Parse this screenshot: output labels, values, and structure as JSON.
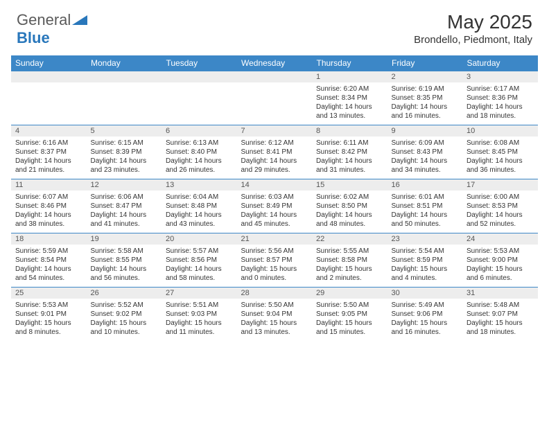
{
  "logo": {
    "text_general": "General",
    "text_blue": "Blue"
  },
  "title": "May 2025",
  "location": "Brondello, Piedmont, Italy",
  "colors": {
    "header_bg": "#3c87c7",
    "header_text": "#ffffff",
    "daynum_bg": "#ededed",
    "daynum_text": "#555555",
    "body_text": "#333333",
    "divider": "#3c87c7"
  },
  "day_names": [
    "Sunday",
    "Monday",
    "Tuesday",
    "Wednesday",
    "Thursday",
    "Friday",
    "Saturday"
  ],
  "weeks": [
    [
      {
        "empty": true
      },
      {
        "empty": true
      },
      {
        "empty": true
      },
      {
        "empty": true
      },
      {
        "day": "1",
        "sunrise": "Sunrise: 6:20 AM",
        "sunset": "Sunset: 8:34 PM",
        "daylight1": "Daylight: 14 hours",
        "daylight2": "and 13 minutes."
      },
      {
        "day": "2",
        "sunrise": "Sunrise: 6:19 AM",
        "sunset": "Sunset: 8:35 PM",
        "daylight1": "Daylight: 14 hours",
        "daylight2": "and 16 minutes."
      },
      {
        "day": "3",
        "sunrise": "Sunrise: 6:17 AM",
        "sunset": "Sunset: 8:36 PM",
        "daylight1": "Daylight: 14 hours",
        "daylight2": "and 18 minutes."
      }
    ],
    [
      {
        "day": "4",
        "sunrise": "Sunrise: 6:16 AM",
        "sunset": "Sunset: 8:37 PM",
        "daylight1": "Daylight: 14 hours",
        "daylight2": "and 21 minutes."
      },
      {
        "day": "5",
        "sunrise": "Sunrise: 6:15 AM",
        "sunset": "Sunset: 8:39 PM",
        "daylight1": "Daylight: 14 hours",
        "daylight2": "and 23 minutes."
      },
      {
        "day": "6",
        "sunrise": "Sunrise: 6:13 AM",
        "sunset": "Sunset: 8:40 PM",
        "daylight1": "Daylight: 14 hours",
        "daylight2": "and 26 minutes."
      },
      {
        "day": "7",
        "sunrise": "Sunrise: 6:12 AM",
        "sunset": "Sunset: 8:41 PM",
        "daylight1": "Daylight: 14 hours",
        "daylight2": "and 29 minutes."
      },
      {
        "day": "8",
        "sunrise": "Sunrise: 6:11 AM",
        "sunset": "Sunset: 8:42 PM",
        "daylight1": "Daylight: 14 hours",
        "daylight2": "and 31 minutes."
      },
      {
        "day": "9",
        "sunrise": "Sunrise: 6:09 AM",
        "sunset": "Sunset: 8:43 PM",
        "daylight1": "Daylight: 14 hours",
        "daylight2": "and 34 minutes."
      },
      {
        "day": "10",
        "sunrise": "Sunrise: 6:08 AM",
        "sunset": "Sunset: 8:45 PM",
        "daylight1": "Daylight: 14 hours",
        "daylight2": "and 36 minutes."
      }
    ],
    [
      {
        "day": "11",
        "sunrise": "Sunrise: 6:07 AM",
        "sunset": "Sunset: 8:46 PM",
        "daylight1": "Daylight: 14 hours",
        "daylight2": "and 38 minutes."
      },
      {
        "day": "12",
        "sunrise": "Sunrise: 6:06 AM",
        "sunset": "Sunset: 8:47 PM",
        "daylight1": "Daylight: 14 hours",
        "daylight2": "and 41 minutes."
      },
      {
        "day": "13",
        "sunrise": "Sunrise: 6:04 AM",
        "sunset": "Sunset: 8:48 PM",
        "daylight1": "Daylight: 14 hours",
        "daylight2": "and 43 minutes."
      },
      {
        "day": "14",
        "sunrise": "Sunrise: 6:03 AM",
        "sunset": "Sunset: 8:49 PM",
        "daylight1": "Daylight: 14 hours",
        "daylight2": "and 45 minutes."
      },
      {
        "day": "15",
        "sunrise": "Sunrise: 6:02 AM",
        "sunset": "Sunset: 8:50 PM",
        "daylight1": "Daylight: 14 hours",
        "daylight2": "and 48 minutes."
      },
      {
        "day": "16",
        "sunrise": "Sunrise: 6:01 AM",
        "sunset": "Sunset: 8:51 PM",
        "daylight1": "Daylight: 14 hours",
        "daylight2": "and 50 minutes."
      },
      {
        "day": "17",
        "sunrise": "Sunrise: 6:00 AM",
        "sunset": "Sunset: 8:53 PM",
        "daylight1": "Daylight: 14 hours",
        "daylight2": "and 52 minutes."
      }
    ],
    [
      {
        "day": "18",
        "sunrise": "Sunrise: 5:59 AM",
        "sunset": "Sunset: 8:54 PM",
        "daylight1": "Daylight: 14 hours",
        "daylight2": "and 54 minutes."
      },
      {
        "day": "19",
        "sunrise": "Sunrise: 5:58 AM",
        "sunset": "Sunset: 8:55 PM",
        "daylight1": "Daylight: 14 hours",
        "daylight2": "and 56 minutes."
      },
      {
        "day": "20",
        "sunrise": "Sunrise: 5:57 AM",
        "sunset": "Sunset: 8:56 PM",
        "daylight1": "Daylight: 14 hours",
        "daylight2": "and 58 minutes."
      },
      {
        "day": "21",
        "sunrise": "Sunrise: 5:56 AM",
        "sunset": "Sunset: 8:57 PM",
        "daylight1": "Daylight: 15 hours",
        "daylight2": "and 0 minutes."
      },
      {
        "day": "22",
        "sunrise": "Sunrise: 5:55 AM",
        "sunset": "Sunset: 8:58 PM",
        "daylight1": "Daylight: 15 hours",
        "daylight2": "and 2 minutes."
      },
      {
        "day": "23",
        "sunrise": "Sunrise: 5:54 AM",
        "sunset": "Sunset: 8:59 PM",
        "daylight1": "Daylight: 15 hours",
        "daylight2": "and 4 minutes."
      },
      {
        "day": "24",
        "sunrise": "Sunrise: 5:53 AM",
        "sunset": "Sunset: 9:00 PM",
        "daylight1": "Daylight: 15 hours",
        "daylight2": "and 6 minutes."
      }
    ],
    [
      {
        "day": "25",
        "sunrise": "Sunrise: 5:53 AM",
        "sunset": "Sunset: 9:01 PM",
        "daylight1": "Daylight: 15 hours",
        "daylight2": "and 8 minutes."
      },
      {
        "day": "26",
        "sunrise": "Sunrise: 5:52 AM",
        "sunset": "Sunset: 9:02 PM",
        "daylight1": "Daylight: 15 hours",
        "daylight2": "and 10 minutes."
      },
      {
        "day": "27",
        "sunrise": "Sunrise: 5:51 AM",
        "sunset": "Sunset: 9:03 PM",
        "daylight1": "Daylight: 15 hours",
        "daylight2": "and 11 minutes."
      },
      {
        "day": "28",
        "sunrise": "Sunrise: 5:50 AM",
        "sunset": "Sunset: 9:04 PM",
        "daylight1": "Daylight: 15 hours",
        "daylight2": "and 13 minutes."
      },
      {
        "day": "29",
        "sunrise": "Sunrise: 5:50 AM",
        "sunset": "Sunset: 9:05 PM",
        "daylight1": "Daylight: 15 hours",
        "daylight2": "and 15 minutes."
      },
      {
        "day": "30",
        "sunrise": "Sunrise: 5:49 AM",
        "sunset": "Sunset: 9:06 PM",
        "daylight1": "Daylight: 15 hours",
        "daylight2": "and 16 minutes."
      },
      {
        "day": "31",
        "sunrise": "Sunrise: 5:48 AM",
        "sunset": "Sunset: 9:07 PM",
        "daylight1": "Daylight: 15 hours",
        "daylight2": "and 18 minutes."
      }
    ]
  ]
}
